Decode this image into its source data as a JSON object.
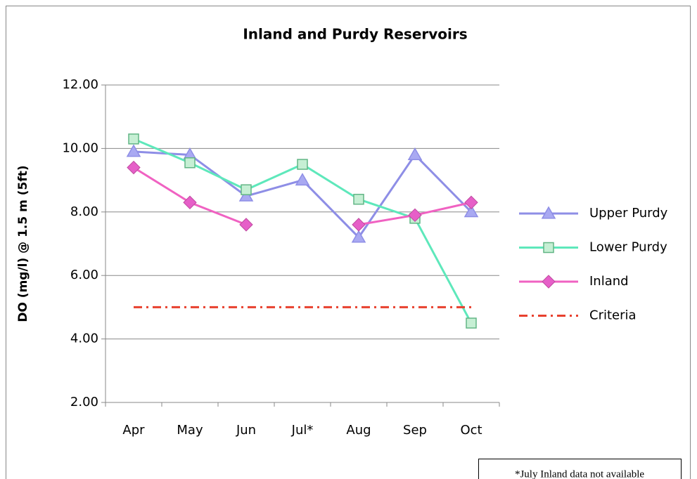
{
  "chart_data": {
    "type": "line",
    "title": "Inland and Purdy Reservoirs",
    "ylabel": "DO (mg/l) @ 1.5 m (5ft)",
    "categories": [
      "Apr",
      "May",
      "Jun",
      "Jul*",
      "Aug",
      "Sep",
      "Oct"
    ],
    "series": [
      {
        "name": "Upper Purdy",
        "color": "#8e8ee6",
        "marker": "triangle",
        "marker_fill": "#a9a9f2",
        "values": [
          9.9,
          9.8,
          8.5,
          9.0,
          7.2,
          9.8,
          8.0
        ]
      },
      {
        "name": "Lower Purdy",
        "color": "#5ee8bb",
        "marker": "square",
        "marker_fill": "#c6efd4",
        "values": [
          10.3,
          9.55,
          8.7,
          9.5,
          8.4,
          7.8,
          4.5
        ]
      },
      {
        "name": "Inland",
        "color": "#f062c2",
        "marker": "diamond",
        "marker_fill": "#e65fc8",
        "values": [
          9.4,
          8.3,
          7.6,
          null,
          7.6,
          7.9,
          8.3
        ]
      },
      {
        "name": "Criteria",
        "color": "#e8402e",
        "marker": "none",
        "dash": "dashdot",
        "values": [
          5,
          5,
          5,
          5,
          5,
          5,
          5
        ]
      }
    ],
    "ylim": [
      2,
      12
    ],
    "yticks": [
      {
        "value": 2,
        "label": "2.00"
      },
      {
        "value": 4,
        "label": "4.00"
      },
      {
        "value": 6,
        "label": "6.00"
      },
      {
        "value": 8,
        "label": "8.00"
      },
      {
        "value": 10,
        "label": "10.00"
      },
      {
        "value": 12,
        "label": "12.00"
      }
    ],
    "grid": true,
    "legend": "right",
    "annotation": "*July Inland data not available"
  }
}
